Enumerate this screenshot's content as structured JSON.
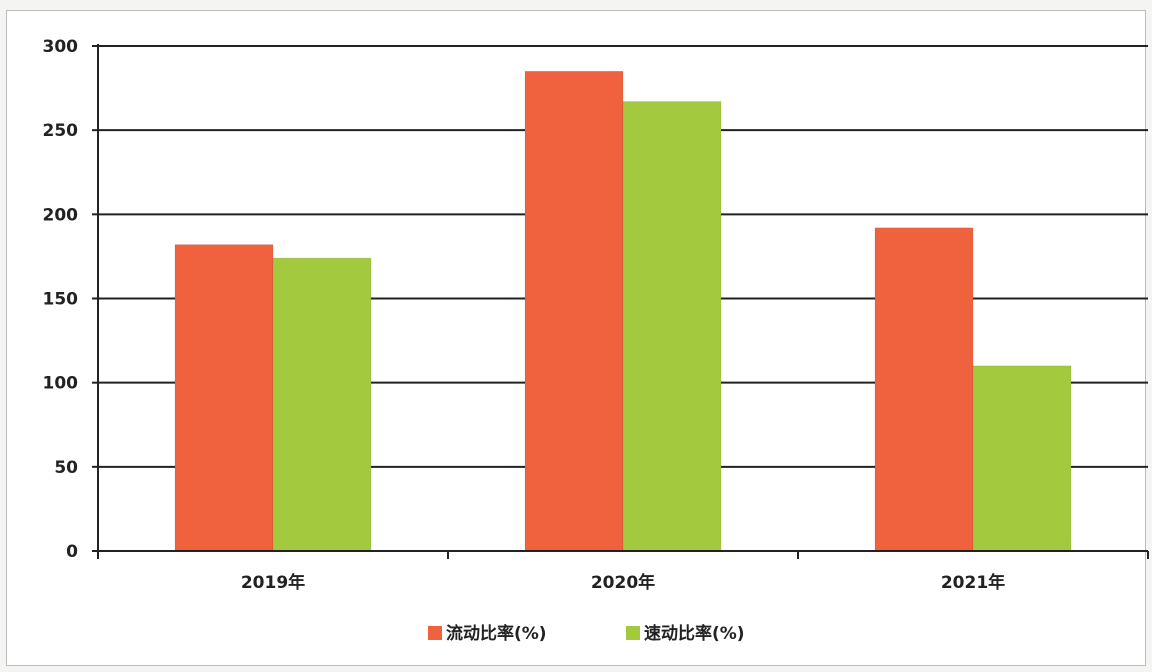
{
  "chart_data": {
    "type": "bar",
    "categories": [
      "2019年",
      "2020年",
      "2021年"
    ],
    "series": [
      {
        "name": "流动比率(%)",
        "values": [
          182,
          285,
          192
        ],
        "color": "#f0623e"
      },
      {
        "name": "速动比率(%)",
        "values": [
          174,
          267,
          110
        ],
        "color": "#a3c93e"
      }
    ],
    "ylim": [
      0,
      300
    ],
    "yticks": [
      0,
      50,
      100,
      150,
      200,
      250,
      300
    ],
    "grid": true,
    "legend_position": "bottom"
  }
}
